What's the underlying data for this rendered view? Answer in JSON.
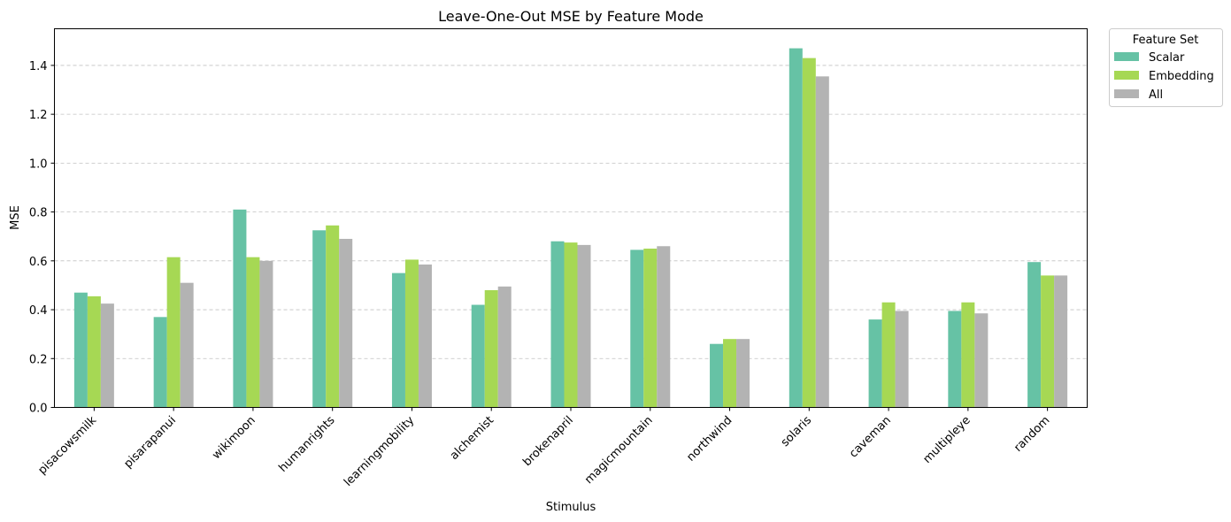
{
  "chart_data": {
    "type": "bar",
    "title": "Leave-One-Out MSE by Feature Mode",
    "xlabel": "Stimulus",
    "ylabel": "MSE",
    "ylim": [
      0,
      1.55
    ],
    "yticks": [
      0.0,
      0.2,
      0.4,
      0.6,
      0.8,
      1.0,
      1.2,
      1.4
    ],
    "grid": "y-dashed",
    "legend": {
      "title": "Feature Set",
      "placement": "outside-top-right"
    },
    "categories": [
      "pisacowsmilk",
      "pisarapanui",
      "wikimoon",
      "humanrights",
      "learningmobility",
      "alchemist",
      "brokenapril",
      "magicmountain",
      "northwind",
      "solaris",
      "caveman",
      "multipleye",
      "random"
    ],
    "series": [
      {
        "name": "Scalar",
        "color": "#66c2a5",
        "values": [
          0.47,
          0.37,
          0.81,
          0.725,
          0.55,
          0.42,
          0.68,
          0.645,
          0.26,
          1.47,
          0.36,
          0.395,
          0.595
        ]
      },
      {
        "name": "Embedding",
        "color": "#a6d854",
        "values": [
          0.455,
          0.615,
          0.615,
          0.745,
          0.605,
          0.48,
          0.675,
          0.65,
          0.28,
          1.43,
          0.43,
          0.43,
          0.54
        ]
      },
      {
        "name": "All",
        "color": "#b3b3b3",
        "values": [
          0.425,
          0.51,
          0.6,
          0.69,
          0.585,
          0.495,
          0.665,
          0.66,
          0.28,
          1.355,
          0.395,
          0.385,
          0.54
        ]
      }
    ]
  }
}
